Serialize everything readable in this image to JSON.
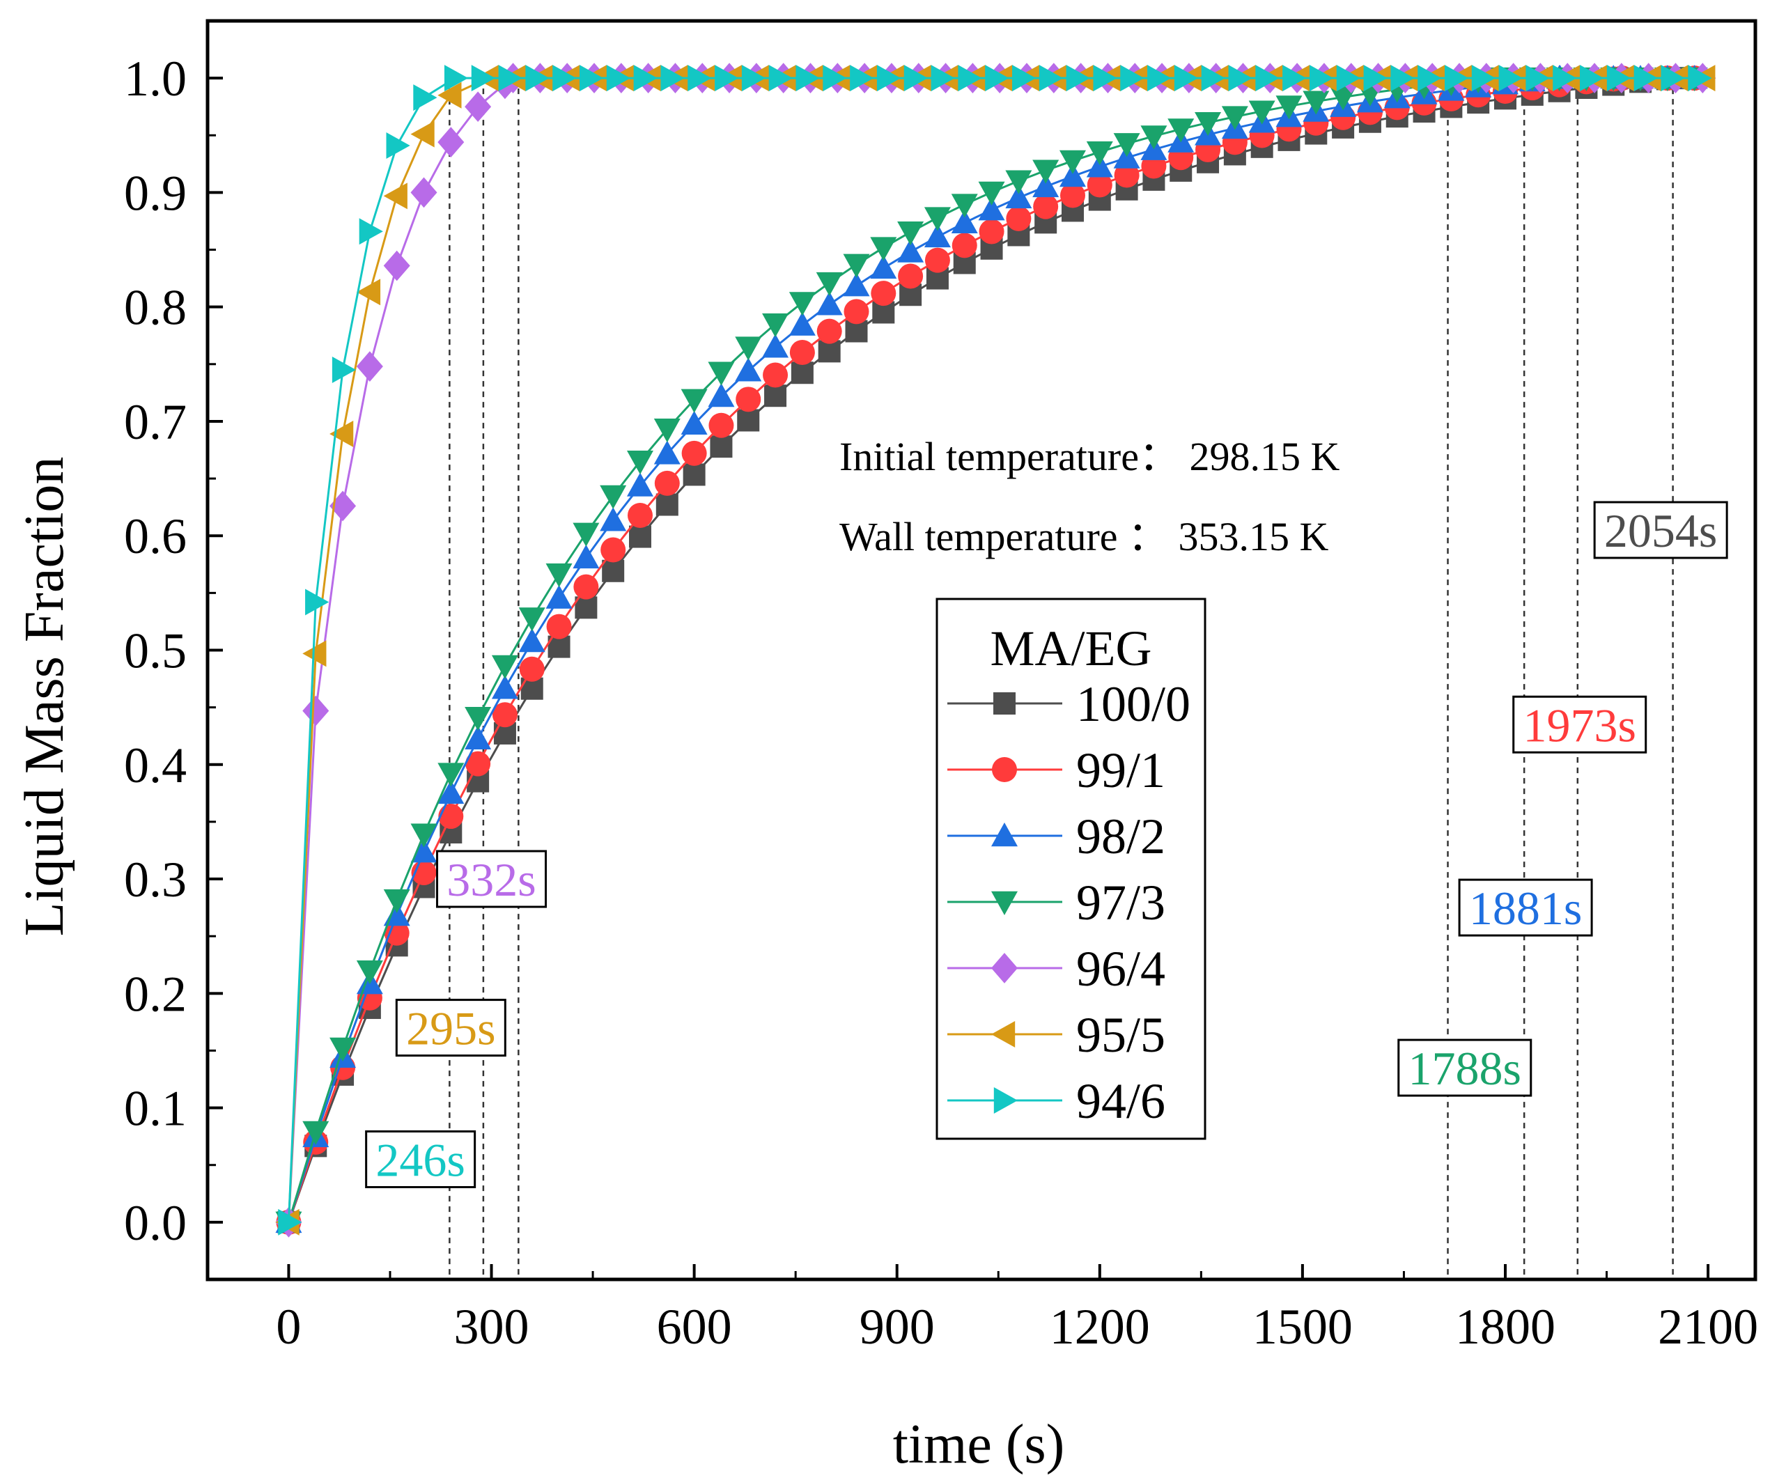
{
  "chart_data": {
    "type": "line",
    "title": "",
    "xlabel": "time (s)",
    "ylabel": "Liquid Mass Fraction",
    "xlim": [
      -120,
      2170
    ],
    "ylim": [
      -0.05,
      1.05
    ],
    "xticks": [
      0,
      300,
      600,
      900,
      1200,
      1500,
      1800,
      2100
    ],
    "xtick_labels": [
      "0",
      "300",
      "600",
      "900",
      "1200",
      "1500",
      "1800",
      "2100"
    ],
    "yticks": [
      0.0,
      0.1,
      0.2,
      0.3,
      0.4,
      0.5,
      0.6,
      0.7,
      0.8,
      0.9,
      1.0
    ],
    "ytick_labels": [
      "0.0",
      "0.1",
      "0.2",
      "0.3",
      "0.4",
      "0.5",
      "0.6",
      "0.7",
      "0.8",
      "0.9",
      "1.0"
    ],
    "legend_title": "MA/EG",
    "legend_position": "center-right",
    "annotations": [
      {
        "text": "Initial temperature：  298.15 K"
      },
      {
        "text": "Wall temperature ：  353.15 K"
      }
    ],
    "callouts": [
      {
        "text": "332s",
        "series": "96/4",
        "time": 340,
        "box_x": 300,
        "box_y": 0.3
      },
      {
        "text": "295s",
        "series": "95/5",
        "time": 288,
        "box_x": 240,
        "box_y": 0.17
      },
      {
        "text": "246s",
        "series": "94/6",
        "time": 238,
        "box_x": 195,
        "box_y": 0.055
      },
      {
        "text": "1788s",
        "series": "97/3",
        "time": 1715,
        "box_x": 1740,
        "box_y": 0.135
      },
      {
        "text": "1881s",
        "series": "98/2",
        "time": 1828,
        "box_x": 1830,
        "box_y": 0.275
      },
      {
        "text": "1973s",
        "series": "99/1",
        "time": 1907,
        "box_x": 1910,
        "box_y": 0.435
      },
      {
        "text": "2054s",
        "series": "100/0",
        "time": 2048,
        "box_x": 2030,
        "box_y": 0.605
      }
    ],
    "series": [
      {
        "name": "100/0",
        "color": "#4d4d4d",
        "marker": "square",
        "model": "slow",
        "tau": 600,
        "t_end": 2054,
        "dt": 40
      },
      {
        "name": "99/1",
        "color": "#ff3b3b",
        "marker": "circle",
        "model": "slow",
        "tau": 570,
        "t_end": 1973,
        "dt": 40
      },
      {
        "name": "98/2",
        "color": "#1f6fe0",
        "marker": "triangle-up",
        "model": "slow",
        "tau": 530,
        "t_end": 1881,
        "dt": 40
      },
      {
        "name": "97/3",
        "color": "#1aa36b",
        "marker": "triangle-down",
        "model": "slow",
        "tau": 500,
        "t_end": 1788,
        "dt": 40
      },
      {
        "name": "96/4",
        "color": "#b86be8",
        "marker": "diamond",
        "model": "fast",
        "points": [
          [
            0,
            0.0
          ],
          [
            40,
            0.447
          ],
          [
            80,
            0.626
          ],
          [
            120,
            0.748
          ],
          [
            160,
            0.836
          ],
          [
            200,
            0.9
          ],
          [
            240,
            0.944
          ],
          [
            280,
            0.975
          ],
          [
            320,
            0.995
          ],
          [
            332,
            1.0
          ]
        ]
      },
      {
        "name": "95/5",
        "color": "#d89a16",
        "marker": "triangle-left",
        "model": "fast",
        "points": [
          [
            0,
            0.0
          ],
          [
            40,
            0.497
          ],
          [
            80,
            0.689
          ],
          [
            120,
            0.813
          ],
          [
            160,
            0.897
          ],
          [
            200,
            0.951
          ],
          [
            240,
            0.985
          ],
          [
            295,
            1.0
          ]
        ]
      },
      {
        "name": "94/6",
        "color": "#13c7c4",
        "marker": "triangle-right",
        "model": "fast",
        "points": [
          [
            0,
            0.0
          ],
          [
            40,
            0.542
          ],
          [
            80,
            0.745
          ],
          [
            120,
            0.866
          ],
          [
            160,
            0.941
          ],
          [
            200,
            0.983
          ],
          [
            246,
            1.0
          ]
        ]
      }
    ]
  }
}
